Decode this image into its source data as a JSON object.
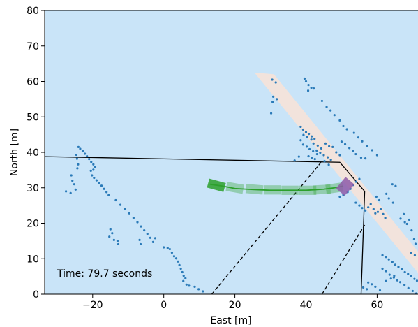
{
  "chart_data": {
    "type": "scatter",
    "xlabel": "East [m]",
    "ylabel": "North [m]",
    "xlim": [
      -33.5,
      71.5
    ],
    "ylim": [
      0,
      80
    ],
    "xticks": [
      -20,
      0,
      20,
      40,
      60
    ],
    "yticks": [
      0,
      10,
      20,
      30,
      40,
      50,
      60,
      70,
      80
    ],
    "grid": false,
    "annotation": "Time: 79.7 seconds",
    "colors": {
      "background": "#c9e4f8",
      "road": "#f2e3dc",
      "points": "#2a7ab8",
      "trajectory": "#2ca02c",
      "vehicle": "#8e5aa8",
      "boundary": "#000000"
    },
    "road_strip": [
      [
        31,
        62
      ],
      [
        71.5,
        12
      ],
      [
        71.5,
        6
      ],
      [
        25.5,
        62.5
      ]
    ],
    "boundary_lines": [
      {
        "style": "solid",
        "points": [
          [
            -33.5,
            38.8
          ],
          [
            49.5,
            37.2
          ],
          [
            56.5,
            29
          ],
          [
            55.5,
            0
          ]
        ]
      },
      {
        "style": "dashed",
        "points": [
          [
            13.5,
            0
          ],
          [
            44.5,
            37.5
          ]
        ]
      },
      {
        "style": "dashed",
        "points": [
          [
            44.5,
            0
          ],
          [
            56.5,
            19.5
          ]
        ]
      }
    ],
    "trajectory": [
      [
        13,
        31
      ],
      [
        16.5,
        30.5
      ],
      [
        20,
        29.8
      ],
      [
        25,
        29.5
      ],
      [
        30,
        29.3
      ],
      [
        35,
        29.3
      ],
      [
        40,
        29.3
      ],
      [
        45,
        29.6
      ],
      [
        48,
        30
      ],
      [
        50.5,
        30.5
      ]
    ],
    "trajectory_boxes": [
      {
        "x": 14.8,
        "y": 30.7,
        "heading": -15,
        "alpha": 0.85
      },
      {
        "x": 20,
        "y": 30,
        "heading": -10,
        "alpha": 0.35
      },
      {
        "x": 25.5,
        "y": 29.6,
        "heading": -5,
        "alpha": 0.35
      },
      {
        "x": 30.5,
        "y": 29.4,
        "heading": 0,
        "alpha": 0.35
      },
      {
        "x": 35.5,
        "y": 29.3,
        "heading": 0,
        "alpha": 0.35
      },
      {
        "x": 40.5,
        "y": 29.3,
        "heading": 0,
        "alpha": 0.35
      },
      {
        "x": 44.5,
        "y": 29.5,
        "heading": 3,
        "alpha": 0.35
      },
      {
        "x": 48,
        "y": 29.9,
        "heading": 8,
        "alpha": 0.35
      }
    ],
    "vehicle": {
      "x": 51,
      "y": 30.4,
      "heading": 50
    },
    "point_clusters": [
      [
        [
          -24,
          41.5
        ],
        [
          -23.5,
          41
        ],
        [
          -22.8,
          40.4
        ],
        [
          -22.2,
          39.6
        ],
        [
          -21.6,
          38.9
        ],
        [
          -21,
          38.1
        ],
        [
          -20.4,
          37.3
        ],
        [
          -19.8,
          36.6
        ],
        [
          -19.3,
          35.9
        ],
        [
          -19.8,
          35.1
        ],
        [
          -20.5,
          34.8
        ]
      ],
      [
        [
          -24.6,
          39.3
        ],
        [
          -24.4,
          38.2
        ],
        [
          -24.1,
          36.6
        ],
        [
          -24.3,
          35.5
        ]
      ],
      [
        [
          -26,
          33.5
        ],
        [
          -25.7,
          32
        ],
        [
          -25.2,
          31
        ],
        [
          -26.2,
          28.5
        ],
        [
          -27.5,
          29
        ],
        [
          -24.8,
          29.5
        ]
      ],
      [
        [
          -20.2,
          33.5
        ],
        [
          -19.6,
          32.8
        ],
        [
          -18.9,
          32.1
        ],
        [
          -18.2,
          31.3
        ],
        [
          -17.5,
          30.6
        ],
        [
          -16.8,
          29.7
        ],
        [
          -16.1,
          28.8
        ],
        [
          -15.5,
          27.9
        ]
      ],
      [
        [
          -13.5,
          26.5
        ],
        [
          -12.2,
          25.2
        ],
        [
          -10.9,
          24
        ],
        [
          -9.7,
          22.8
        ],
        [
          -8.5,
          21.5
        ],
        [
          -7.4,
          20.3
        ],
        [
          -6.4,
          19.1
        ],
        [
          -5.5,
          18
        ],
        [
          -4.6,
          17
        ],
        [
          -3.8,
          15.9
        ]
      ],
      [
        [
          -15,
          18.3
        ],
        [
          -14.5,
          17.2
        ],
        [
          -15.3,
          16.2
        ],
        [
          -14,
          15.3
        ],
        [
          -13,
          15
        ],
        [
          -12.8,
          14.1
        ]
      ],
      [
        [
          -3,
          14.7
        ],
        [
          -2.4,
          15.8
        ],
        [
          -6.5,
          14.1
        ],
        [
          -6.8,
          15.3
        ]
      ],
      [
        [
          0,
          13.2
        ],
        [
          1.1,
          13
        ],
        [
          1.7,
          12.7
        ],
        [
          2.3,
          11.7
        ],
        [
          2.9,
          10.7
        ],
        [
          3.5,
          10.1
        ],
        [
          4,
          9.2
        ],
        [
          4.4,
          8.2
        ],
        [
          4.8,
          7.2
        ],
        [
          5.2,
          6.2
        ],
        [
          5.6,
          5.2
        ],
        [
          6.1,
          4.5
        ]
      ],
      [
        [
          5.5,
          3.7
        ],
        [
          6.4,
          2.7
        ],
        [
          7.1,
          2.4
        ],
        [
          8.7,
          2.1
        ],
        [
          9.8,
          1.4
        ],
        [
          11,
          0.8
        ]
      ],
      [
        [
          30.5,
          60.5
        ],
        [
          31.5,
          59.7
        ],
        [
          30.8,
          55.7
        ],
        [
          31.8,
          55
        ],
        [
          30.6,
          54.2
        ],
        [
          30.2,
          51
        ]
      ],
      [
        [
          39.6,
          60.8
        ],
        [
          40,
          60
        ],
        [
          40.7,
          59
        ],
        [
          41.5,
          58.2
        ],
        [
          42.2,
          58
        ],
        [
          40.6,
          57.4
        ]
      ],
      [
        [
          44.5,
          54.5
        ],
        [
          45.8,
          52.8
        ],
        [
          46.9,
          51.8
        ],
        [
          48,
          50.5
        ],
        [
          49.5,
          49
        ],
        [
          50.5,
          47.4
        ],
        [
          51.5,
          46.5
        ]
      ],
      [
        [
          53.5,
          45.5
        ],
        [
          54.7,
          44.2
        ],
        [
          55.8,
          43.1
        ],
        [
          57.2,
          41.8
        ],
        [
          58.6,
          40.6
        ],
        [
          60,
          39.2
        ]
      ],
      [
        [
          38.5,
          47.2
        ],
        [
          39.2,
          46.4
        ],
        [
          40,
          45.7
        ],
        [
          40.8,
          45.2
        ],
        [
          41.6,
          44.5
        ],
        [
          42.4,
          43.8
        ],
        [
          39.3,
          44.9
        ],
        [
          40.3,
          44.3
        ],
        [
          41.5,
          43.6
        ],
        [
          42.1,
          42.5
        ],
        [
          43.3,
          41.9
        ],
        [
          44.3,
          41.1
        ],
        [
          43,
          40.5
        ],
        [
          44,
          39.9
        ],
        [
          45,
          39.2
        ],
        [
          46.1,
          38.6
        ],
        [
          47,
          37.9
        ],
        [
          38.5,
          43.4
        ],
        [
          39.2,
          42.2
        ],
        [
          40.2,
          41.6
        ],
        [
          41,
          40.9
        ],
        [
          42,
          40.3
        ],
        [
          43.1,
          39.5
        ],
        [
          40.7,
          38.9
        ],
        [
          41.6,
          38.5
        ],
        [
          42.5,
          38.1
        ],
        [
          38,
          38.8
        ],
        [
          36.8,
          37.7
        ],
        [
          45.2,
          37.5
        ],
        [
          46.4,
          36.5
        ],
        [
          45.5,
          42.5
        ],
        [
          46.5,
          41.7
        ],
        [
          47.5,
          41.5
        ],
        [
          48.5,
          40
        ],
        [
          49.5,
          39.2
        ]
      ],
      [
        [
          50,
          43
        ],
        [
          51,
          42.3
        ],
        [
          52.2,
          41.2
        ],
        [
          53.2,
          40.4
        ],
        [
          54,
          39.5
        ],
        [
          55.5,
          38.5
        ],
        [
          56.7,
          38.3
        ]
      ],
      [
        [
          49.5,
          27.5
        ],
        [
          50.5,
          28
        ],
        [
          51.7,
          28.8
        ],
        [
          52.5,
          29.7
        ],
        [
          53.3,
          30.8
        ],
        [
          54.1,
          31.7
        ],
        [
          55,
          32.5
        ]
      ],
      [
        [
          54,
          25.8
        ],
        [
          55,
          25
        ],
        [
          55.8,
          24.3
        ],
        [
          56.7,
          23.6
        ],
        [
          57.5,
          24.5
        ],
        [
          58.2,
          25.4
        ],
        [
          59,
          24
        ],
        [
          59.5,
          22.8
        ],
        [
          60.2,
          23.2
        ],
        [
          61,
          24
        ],
        [
          61.7,
          22.6
        ],
        [
          62.3,
          21.5
        ],
        [
          59.8,
          27.5
        ],
        [
          60.6,
          26.5
        ],
        [
          62.6,
          28.3
        ],
        [
          63.3,
          27
        ],
        [
          64.3,
          31
        ],
        [
          65.2,
          30.5
        ],
        [
          64.5,
          25.8
        ]
      ],
      [
        [
          66.6,
          21.3
        ],
        [
          67.5,
          22.6
        ],
        [
          67.8,
          20.3
        ],
        [
          68.4,
          19.8
        ],
        [
          69,
          21
        ],
        [
          69.7,
          18
        ],
        [
          70.4,
          15.5
        ],
        [
          70.8,
          14.2
        ],
        [
          69.5,
          11.7
        ],
        [
          70.6,
          11
        ]
      ],
      [
        [
          61.5,
          11
        ],
        [
          62.5,
          10.5
        ],
        [
          63.3,
          9.8
        ],
        [
          64.3,
          9.1
        ],
        [
          65.1,
          8.3
        ],
        [
          66,
          7.7
        ],
        [
          66.9,
          7.1
        ],
        [
          67.8,
          6.2
        ],
        [
          68.7,
          5.7
        ],
        [
          69.5,
          5.2
        ],
        [
          70.5,
          4.3
        ],
        [
          71.2,
          3.8
        ]
      ],
      [
        [
          61.5,
          7.2
        ],
        [
          62.5,
          6.5
        ],
        [
          63.5,
          5.5
        ],
        [
          64.7,
          4.7
        ],
        [
          65.7,
          3.9
        ],
        [
          66.5,
          3.4
        ],
        [
          67.7,
          2.6
        ],
        [
          68.8,
          1.7
        ],
        [
          70,
          0.9
        ],
        [
          71,
          0.2
        ]
      ],
      [
        [
          57.5,
          3.3
        ],
        [
          58.5,
          2.8
        ],
        [
          59.5,
          2.1
        ],
        [
          60.8,
          1.1
        ],
        [
          56.1,
          1.9
        ],
        [
          57.1,
          1.4
        ]
      ],
      [
        [
          64.8,
          5.2
        ],
        [
          63.9,
          4.4
        ],
        [
          62.5,
          3.7
        ]
      ]
    ]
  }
}
